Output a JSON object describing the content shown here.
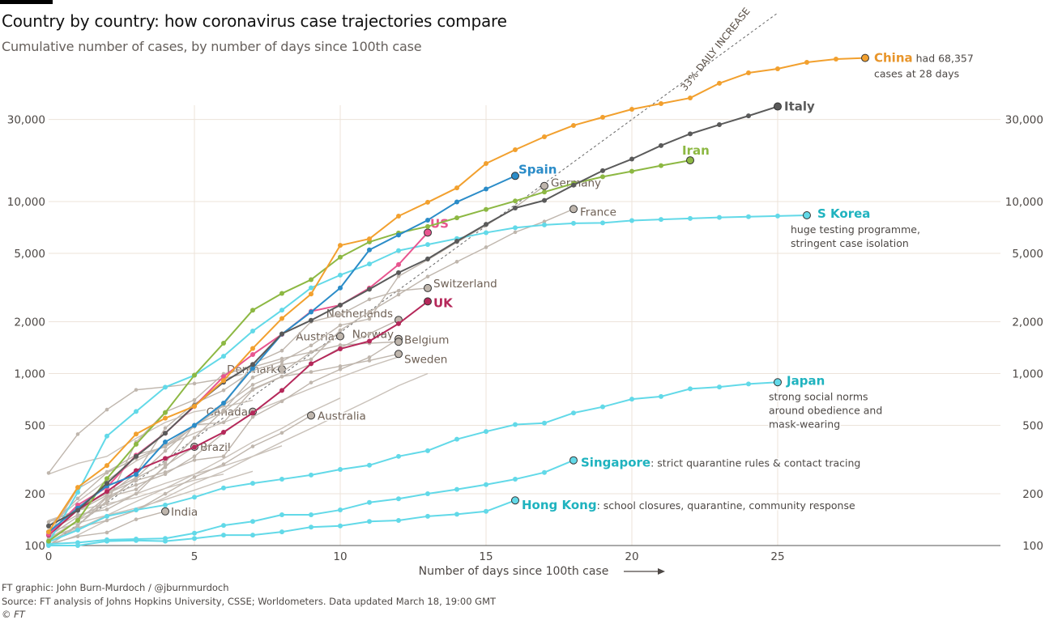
{
  "header": {
    "title": "Country by country: how coronavirus case trajectories compare",
    "subtitle": "Cumulative number of cases, by number of days since 100th case"
  },
  "footer": {
    "credit": "FT graphic: John Burn-Murdoch / @jburnmurdoch",
    "source": "Source: FT analysis of Johns Hopkins University, CSSE; Worldometers. Data updated March 18, 19:00 GMT",
    "copyright": "© FT"
  },
  "chart_data": {
    "type": "line",
    "title": "Country by country: how coronavirus case trajectories compare",
    "xlabel": "Number of days since 100th case",
    "ylabel": "Cumulative number of cases",
    "yscale": "log",
    "xlim": [
      0,
      32
    ],
    "ylim": [
      100,
      130000
    ],
    "xticks": [
      "0",
      "5",
      "10",
      "15",
      "20",
      "25"
    ],
    "yticks": [
      100,
      200,
      500,
      1000,
      2000,
      5000,
      10000,
      30000
    ],
    "ytick_labels": [
      "100",
      "200",
      "500",
      "1,000",
      "2,000",
      "5,000",
      "10,000",
      "30,000"
    ],
    "grid": true,
    "reference_line": {
      "label": "33% DAILY INCREASE",
      "growth": 1.33,
      "start": 100
    },
    "series": [
      {
        "name": "Other-1",
        "color": "#c9c1b9",
        "values": [
          260,
          300,
          330,
          420,
          520,
          600,
          640,
          700
        ]
      },
      {
        "name": "Other-2",
        "color": "#c9c1b9",
        "values": [
          140,
          160,
          175,
          190,
          215,
          240,
          260
        ]
      },
      {
        "name": "Other-3",
        "color": "#c9c1b9",
        "values": [
          110,
          140,
          170,
          200,
          230,
          260,
          290,
          330,
          380
        ]
      },
      {
        "name": "Other-4",
        "color": "#c9c1b9",
        "values": [
          120,
          135,
          150,
          165,
          185,
          210,
          240,
          270
        ]
      },
      {
        "name": "Other-5",
        "color": "#c9c1b9",
        "values": [
          105,
          125,
          150,
          180,
          215,
          260,
          320,
          400,
          480,
          600,
          720
        ]
      },
      {
        "name": "Other-6",
        "color": "#c9c1b9",
        "values": [
          130,
          180,
          240,
          310,
          380,
          450,
          520,
          600,
          700,
          820,
          950,
          1100,
          1250
        ]
      },
      {
        "name": "Other-7",
        "color": "#c9c1b9",
        "values": [
          100,
          115,
          140,
          160,
          190,
          230,
          270,
          330,
          400,
          480,
          580,
          700,
          850,
          1000
        ]
      },
      {
        "name": "India",
        "label": "India",
        "color": "#bfb6ad",
        "values": [
          102,
          113,
          119,
          142,
          158
        ]
      },
      {
        "name": "Brazil",
        "label": "Brazil",
        "color": "#bfb6ad",
        "values": [
          121,
          151,
          162,
          200,
          291,
          375
        ]
      },
      {
        "name": "Australia",
        "label": "Australia",
        "color": "#bfb6ad",
        "values": [
          112,
          127,
          140,
          160,
          200,
          250,
          297,
          377,
          452,
          570
        ]
      },
      {
        "name": "Canada",
        "label": "Canada",
        "color": "#bfb6ad",
        "values": [
          108,
          140,
          193,
          225,
          260,
          330,
          450,
          600
        ]
      },
      {
        "name": "Denmark",
        "label": "Denmark",
        "color": "#bfb6ad",
        "values": [
          264,
          444,
          617,
          804,
          836,
          875,
          933,
          1025,
          1060
        ]
      },
      {
        "name": "Sweden",
        "label": "Sweden",
        "color": "#bfb6ad",
        "values": [
          137,
          161,
          203,
          248,
          355,
          500,
          599,
          814,
          961,
          1022,
          1103,
          1190,
          1300
        ]
      },
      {
        "name": "Belgium",
        "label": "Belgium",
        "color": "#bfb6ad",
        "values": [
          109,
          169,
          200,
          239,
          267,
          314,
          330,
          559,
          689,
          886,
          1058,
          1243,
          1590
        ]
      },
      {
        "name": "Norway",
        "label": "Norway",
        "color": "#bfb6ad",
        "values": [
          113,
          147,
          176,
          400,
          598,
          702,
          996,
          1090,
          1221,
          1333,
          1463,
          1500,
          1530
        ]
      },
      {
        "name": "Austria",
        "label": "Austria",
        "color": "#bfb6ad",
        "values": [
          104,
          131,
          182,
          246,
          302,
          504,
          655,
          860,
          1018,
          1332,
          1646
        ]
      },
      {
        "name": "Netherlands",
        "label": "Netherlands",
        "color": "#bfb6ad",
        "values": [
          128,
          188,
          265,
          321,
          382,
          503,
          520,
          804,
          959,
          1135,
          1413,
          1705,
          2051
        ]
      },
      {
        "name": "Switzerland",
        "label": "Switzerland",
        "color": "#bfb6ad",
        "values": [
          114,
          214,
          268,
          337,
          374,
          491,
          652,
          1139,
          1359,
          2000,
          2200,
          2700,
          3028,
          3140
        ]
      },
      {
        "name": "France",
        "label": "France",
        "color": "#bfb6ad",
        "values": [
          100,
          130,
          191,
          212,
          285,
          423,
          613,
          949,
          1126,
          1209,
          1784,
          2281,
          2876,
          3661,
          4469,
          5423,
          6633,
          7652,
          9043
        ]
      },
      {
        "name": "Germany",
        "label": "Germany",
        "color": "#bfb6ad",
        "values": [
          130,
          159,
          196,
          262,
          482,
          670,
          799,
          1040,
          1176,
          1457,
          1908,
          2078,
          3675,
          4585,
          5795,
          7272,
          9257,
          12327
        ]
      },
      {
        "name": "Hong Kong",
        "label": "Hong Kong",
        "note": ": school closures, quarantine, community response",
        "color": "#62d9e8",
        "label_color": "#1fb3bf",
        "values": [
          100,
          100,
          106,
          107,
          106,
          110,
          115,
          115,
          120,
          128,
          130,
          138,
          140,
          148,
          152,
          158,
          183
        ]
      },
      {
        "name": "Singapore",
        "label": "Singapore",
        "note": ": strict quarantine rules & contact tracing",
        "color": "#62d9e8",
        "label_color": "#1fb3bf",
        "values": [
          102,
          104,
          108,
          109,
          110,
          118,
          131,
          138,
          151,
          151,
          161,
          178,
          187,
          200,
          212,
          226,
          243,
          266,
          313
        ]
      },
      {
        "name": "Japan",
        "label": "Japan",
        "note_lines": [
          "strong social norms",
          "around obedience and",
          "mask-wearing"
        ],
        "color": "#62d9e8",
        "label_color": "#1fb3bf",
        "values": [
          105,
          123,
          148,
          161,
          172,
          191,
          216,
          230,
          243,
          257,
          277,
          293,
          330,
          356,
          415,
          460,
          505,
          515,
          590,
          640,
          710,
          735,
          815,
          835,
          870,
          890
        ]
      },
      {
        "name": "S Korea",
        "label": "S Korea",
        "note_lines": [
          "huge testing programme,",
          "stringent case isolation"
        ],
        "color": "#62d9e8",
        "label_color": "#1fb3bf",
        "values": [
          104,
          204,
          433,
          602,
          833,
          977,
          1261,
          1766,
          2337,
          3150,
          3736,
          4335,
          5186,
          5621,
          6088,
          6593,
          7041,
          7314,
          7478,
          7513,
          7755,
          7869,
          7979,
          8086,
          8162,
          8236,
          8320
        ]
      },
      {
        "name": "UK",
        "label": "UK",
        "color": "#b5285a",
        "values": [
          115,
          161,
          206,
          273,
          321,
          373,
          456,
          590,
          798,
          1140,
          1391,
          1543,
          1950,
          2626
        ]
      },
      {
        "name": "US",
        "label": "US",
        "color": "#e8558f",
        "values": [
          116,
          172,
          218,
          335,
          450,
          645,
          960,
          1290,
          1690,
          2300,
          2500,
          3140,
          4300,
          6600
        ]
      },
      {
        "name": "Iran",
        "label": "Iran",
        "color": "#8db843",
        "values": [
          106,
          140,
          245,
          388,
          593,
          978,
          1501,
          2336,
          2922,
          3513,
          4747,
          5823,
          6566,
          7161,
          8042,
          9000,
          10075,
          11364,
          12729,
          13938,
          14991,
          16169,
          17361
        ]
      },
      {
        "name": "Spain",
        "label": "Spain",
        "color": "#2b8cc8",
        "values": [
          120,
          165,
          222,
          259,
          400,
          500,
          673,
          1073,
          1695,
          2277,
          3146,
          5232,
          6391,
          7798,
          9942,
          11826,
          14100
        ]
      },
      {
        "name": "Italy",
        "label": "Italy",
        "color": "#5a5a5a",
        "values": [
          130,
          160,
          230,
          330,
          450,
          650,
          890,
          1130,
          1700,
          2040,
          2500,
          3090,
          3860,
          4640,
          5880,
          7375,
          9170,
          10150,
          12460,
          15110,
          17660,
          21160,
          24750,
          27980,
          31500,
          35710
        ]
      },
      {
        "name": "China",
        "label": "China",
        "note": " had 68,357",
        "note_lines": [
          "cases at 28 days"
        ],
        "color": "#f2a02e",
        "label_color": "#e8952a",
        "values": [
          120,
          218,
          292,
          445,
          550,
          645,
          910,
          1400,
          2090,
          2900,
          5560,
          6070,
          8230,
          9900,
          12000,
          16640,
          20000,
          23800,
          27700,
          30900,
          34400,
          37100,
          40000,
          48700,
          56000,
          59100,
          64500,
          67300,
          68357
        ]
      }
    ]
  }
}
